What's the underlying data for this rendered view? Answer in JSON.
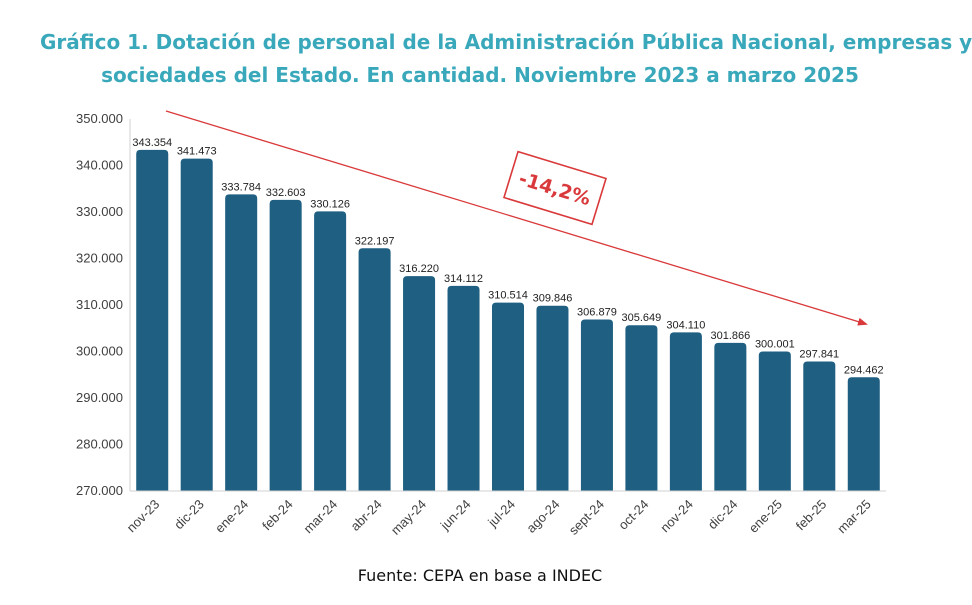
{
  "title_line1": "Gráfico 1. Dotación de personal de la Administración Pública Nacional, empresas y",
  "title_line2": "sociedades del Estado. En cantidad. Noviembre 2023 a marzo 2025",
  "source": "Fuente: CEPA en base a INDEC",
  "colors": {
    "title": "#3aa8bb",
    "bar": "#1e5f82",
    "trend": "#d9393a"
  },
  "chart_data": {
    "type": "bar",
    "categories": [
      "nov-23",
      "dic-23",
      "ene-24",
      "feb-24",
      "mar-24",
      "abr-24",
      "may-24",
      "jun-24",
      "jul-24",
      "ago-24",
      "sept-24",
      "oct-24",
      "nov-24",
      "dic-24",
      "ene-25",
      "feb-25",
      "mar-25"
    ],
    "values": [
      343354,
      341473,
      333784,
      332603,
      330126,
      322197,
      316220,
      314112,
      310514,
      309846,
      306879,
      305649,
      304110,
      301866,
      300001,
      297841,
      294462
    ],
    "value_labels": [
      "343.354",
      "341.473",
      "333.784",
      "332.603",
      "330.126",
      "322.197",
      "316.220",
      "314.112",
      "310.514",
      "309.846",
      "306.879",
      "305.649",
      "304.110",
      "301.866",
      "300.001",
      "297.841",
      "294.462"
    ],
    "y_ticks": [
      270000,
      280000,
      290000,
      300000,
      310000,
      320000,
      330000,
      340000,
      350000
    ],
    "y_tick_labels": [
      "270.000",
      "280.000",
      "290.000",
      "300.000",
      "310.000",
      "320.000",
      "330.000",
      "340.000",
      "350.000"
    ],
    "ylim": [
      270000,
      350000
    ],
    "annotation": "-14,2%",
    "grid": false
  }
}
